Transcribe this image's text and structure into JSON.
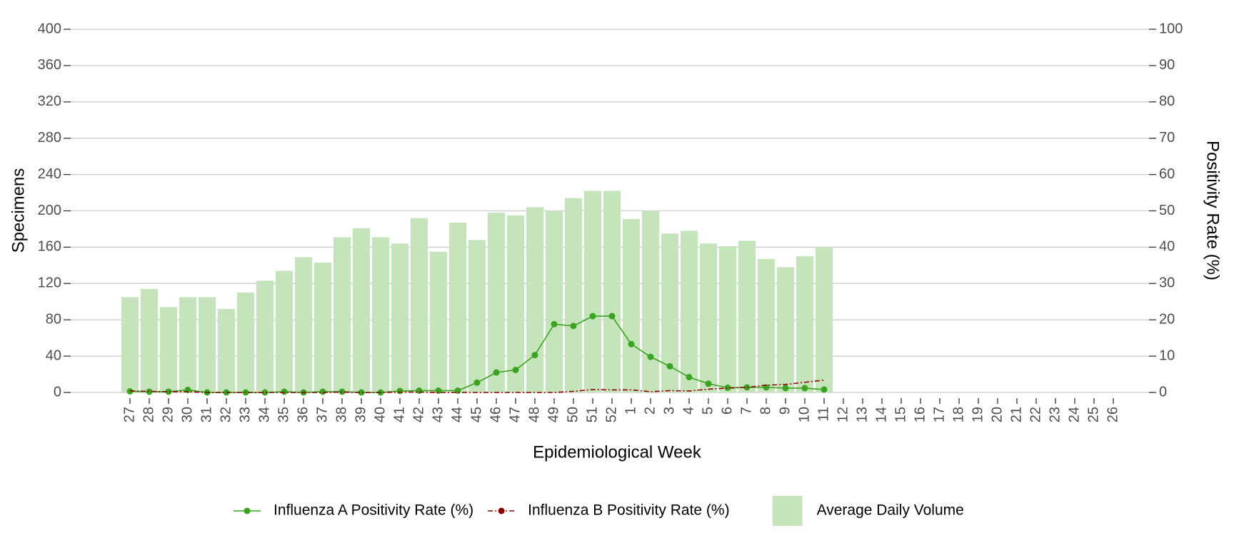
{
  "chart_data": {
    "type": "bar",
    "xlabel": "Epidemiological Week",
    "ylabel": "Specimens",
    "y2label": "Positivity Rate (%)",
    "categories": [
      "27",
      "28",
      "29",
      "30",
      "31",
      "32",
      "33",
      "34",
      "35",
      "36",
      "37",
      "38",
      "39",
      "40",
      "41",
      "42",
      "43",
      "44",
      "45",
      "46",
      "47",
      "48",
      "49",
      "50",
      "51",
      "52",
      "1",
      "2",
      "3",
      "4",
      "5",
      "6",
      "7",
      "8",
      "9",
      "10",
      "11",
      "12",
      "13",
      "14",
      "15",
      "16",
      "17",
      "18",
      "19",
      "20",
      "21",
      "22",
      "23",
      "24",
      "25",
      "26"
    ],
    "ylim": [
      0,
      400
    ],
    "yticks": [
      0,
      40,
      80,
      120,
      160,
      200,
      240,
      280,
      320,
      360,
      400
    ],
    "y2lim": [
      0,
      100
    ],
    "y2ticks": [
      0,
      10,
      20,
      30,
      40,
      50,
      60,
      70,
      80,
      90,
      100
    ],
    "grid": true,
    "legend": "bottom",
    "series": [
      {
        "name": "Average Daily Volume",
        "type": "bar",
        "axis": "y",
        "color": "#c6e4bc",
        "values": [
          105,
          114,
          94,
          105,
          105,
          92,
          110,
          123,
          134,
          149,
          143,
          171,
          181,
          171,
          164,
          192,
          155,
          187,
          168,
          198,
          195,
          204,
          200,
          214,
          222,
          222,
          191,
          200,
          175,
          178,
          164,
          161,
          167,
          147,
          138,
          150,
          160,
          null,
          null,
          null,
          null,
          null,
          null,
          null,
          null,
          null,
          null,
          null,
          null,
          null,
          null,
          null
        ]
      },
      {
        "name": "Influenza A Positivity Rate (%)",
        "type": "line",
        "axis": "y2",
        "color": "#3aa320",
        "markers": true,
        "dash": false,
        "values": [
          0.3,
          0.2,
          0.2,
          0.7,
          0,
          0,
          0,
          0,
          0.2,
          0,
          0.2,
          0.2,
          0,
          0,
          0.4,
          0.5,
          0.5,
          0.5,
          2.7,
          5.5,
          6.2,
          10.3,
          18.8,
          18.3,
          21,
          21,
          13.3,
          9.8,
          7.2,
          4.2,
          2.4,
          1.3,
          1.4,
          1.4,
          1.2,
          1.2,
          0.8,
          null,
          null,
          null,
          null,
          null,
          null,
          null,
          null,
          null,
          null,
          null,
          null,
          null,
          null,
          null
        ]
      },
      {
        "name": "Influenza B Positivity Rate (%)",
        "type": "line",
        "axis": "y2",
        "color": "#8b0000",
        "markers": false,
        "dash": true,
        "values": [
          0.4,
          0.3,
          0.2,
          0.2,
          0,
          0,
          0,
          0,
          0,
          0,
          0,
          0.1,
          0,
          0,
          0.1,
          0.1,
          0,
          0,
          0,
          0,
          0,
          0,
          0,
          0.3,
          0.8,
          0.7,
          0.7,
          0.2,
          0.5,
          0.4,
          0.9,
          1.2,
          1.4,
          2,
          2.2,
          2.8,
          3.4,
          null,
          null,
          null,
          null,
          null,
          null,
          null,
          null,
          null,
          null,
          null,
          null,
          null,
          null,
          null
        ]
      }
    ]
  }
}
